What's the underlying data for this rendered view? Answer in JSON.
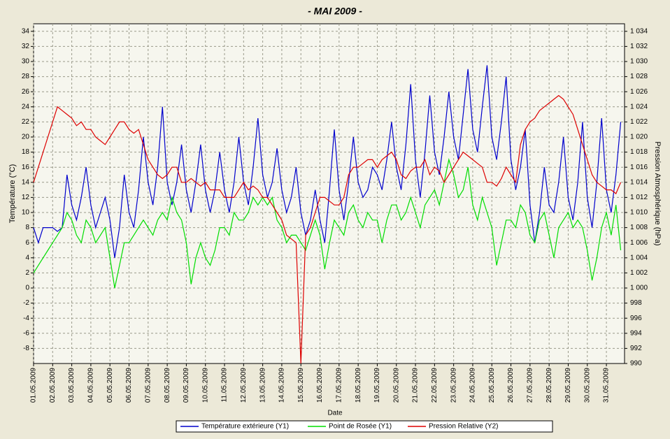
{
  "chart_data": {
    "type": "line",
    "title": "-  MAI  2009  -",
    "xlabel": "Date",
    "ylabel": "Température (°C)",
    "y2label": "Pression Atmosphérique (hPa)",
    "grid": true,
    "legend": "bottom",
    "xlim": [
      1,
      31.95
    ],
    "xticks": [
      {
        "value": 1,
        "label": "01.05.2009"
      },
      {
        "value": 2,
        "label": "02.05.2009"
      },
      {
        "value": 3,
        "label": "03.05.2009"
      },
      {
        "value": 4,
        "label": "04.05.2009"
      },
      {
        "value": 5,
        "label": "05.05.2009"
      },
      {
        "value": 6,
        "label": "06.05.2009"
      },
      {
        "value": 7,
        "label": "07.05.2009"
      },
      {
        "value": 8,
        "label": "08.05.2009"
      },
      {
        "value": 9,
        "label": "09.05.2009"
      },
      {
        "value": 10,
        "label": "10.05.2009"
      },
      {
        "value": 11,
        "label": "11.05.2009"
      },
      {
        "value": 12,
        "label": "12.05.2009"
      },
      {
        "value": 13,
        "label": "13.05.2009"
      },
      {
        "value": 14,
        "label": "14.05.2009"
      },
      {
        "value": 15,
        "label": "15.05.2009"
      },
      {
        "value": 16,
        "label": "16.05.2009"
      },
      {
        "value": 17,
        "label": "17.05.2009"
      },
      {
        "value": 18,
        "label": "18.05.2009"
      },
      {
        "value": 19,
        "label": "19.05.2009"
      },
      {
        "value": 20,
        "label": "20.05.2009"
      },
      {
        "value": 21,
        "label": "21.05.2009"
      },
      {
        "value": 22,
        "label": "22.05.2009"
      },
      {
        "value": 23,
        "label": "23.05.2009"
      },
      {
        "value": 24,
        "label": "24.05.2009"
      },
      {
        "value": 25,
        "label": "25.05.2009"
      },
      {
        "value": 26,
        "label": "26.05.2009"
      },
      {
        "value": 27,
        "label": "27.05.2009"
      },
      {
        "value": 28,
        "label": "28.05.2009"
      },
      {
        "value": 29,
        "label": "29.05.2009"
      },
      {
        "value": 30,
        "label": "30.05.2009"
      },
      {
        "value": 31,
        "label": "31.05.2009"
      }
    ],
    "ylim": [
      -10,
      35
    ],
    "yticks": [
      -8,
      -6,
      -4,
      -2,
      0,
      2,
      4,
      6,
      8,
      10,
      12,
      14,
      16,
      18,
      20,
      22,
      24,
      26,
      28,
      30,
      32,
      34
    ],
    "y2lim": [
      990,
      1035
    ],
    "y2ticks": [
      990,
      992,
      994,
      996,
      998,
      {
        "value": 1000,
        "label": "1 000"
      },
      {
        "value": 1002,
        "label": "1 002"
      },
      {
        "value": 1004,
        "label": "1 004"
      },
      {
        "value": 1006,
        "label": "1 006"
      },
      {
        "value": 1008,
        "label": "1 008"
      },
      {
        "value": 1010,
        "label": "1 010"
      },
      {
        "value": 1012,
        "label": "1 012"
      },
      {
        "value": 1014,
        "label": "1 014"
      },
      {
        "value": 1016,
        "label": "1 016"
      },
      {
        "value": 1018,
        "label": "1 018"
      },
      {
        "value": 1020,
        "label": "1 020"
      },
      {
        "value": 1022,
        "label": "1 022"
      },
      {
        "value": 1024,
        "label": "1 024"
      },
      {
        "value": 1026,
        "label": "1 026"
      },
      {
        "value": 1028,
        "label": "1 028"
      },
      {
        "value": 1030,
        "label": "1 030"
      },
      {
        "value": 1032,
        "label": "1 032"
      },
      {
        "value": 1034,
        "label": "1 034"
      }
    ],
    "x": [
      1,
      1.25,
      1.5,
      1.75,
      2,
      2.25,
      2.5,
      2.75,
      3,
      3.25,
      3.5,
      3.75,
      4,
      4.25,
      4.5,
      4.75,
      5,
      5.25,
      5.5,
      5.75,
      6,
      6.25,
      6.5,
      6.75,
      7,
      7.25,
      7.5,
      7.75,
      8,
      8.25,
      8.5,
      8.75,
      9,
      9.25,
      9.5,
      9.75,
      10,
      10.25,
      10.5,
      10.75,
      11,
      11.25,
      11.5,
      11.75,
      12,
      12.25,
      12.5,
      12.75,
      13,
      13.25,
      13.5,
      13.75,
      14,
      14.25,
      14.5,
      14.75,
      15,
      15.25,
      15.5,
      15.75,
      16,
      16.25,
      16.5,
      16.75,
      17,
      17.25,
      17.5,
      17.75,
      18,
      18.25,
      18.5,
      18.75,
      19,
      19.25,
      19.5,
      19.75,
      20,
      20.25,
      20.5,
      20.75,
      21,
      21.25,
      21.5,
      21.75,
      22,
      22.25,
      22.5,
      22.75,
      23,
      23.25,
      23.5,
      23.75,
      24,
      24.25,
      24.5,
      24.75,
      25,
      25.25,
      25.5,
      25.75,
      26,
      26.25,
      26.5,
      26.75,
      27,
      27.25,
      27.5,
      27.75,
      28,
      28.25,
      28.5,
      28.75,
      29,
      29.25,
      29.5,
      29.75,
      30,
      30.25,
      30.5,
      30.75,
      31,
      31.25,
      31.5,
      31.75
    ],
    "series": [
      {
        "name": "Température extérieure (Y1)",
        "color": "#0000cc",
        "values": [
          8,
          6,
          8,
          8,
          8,
          7.5,
          8,
          15,
          11,
          9,
          12,
          16,
          11,
          8,
          10,
          12,
          9,
          4,
          8,
          15,
          10,
          8,
          13,
          20,
          14,
          11,
          16,
          24,
          14,
          11,
          14,
          19,
          13,
          10,
          14,
          19,
          13,
          10,
          13,
          18,
          13,
          10,
          14,
          20,
          14,
          11,
          16,
          22.5,
          15,
          12,
          14,
          18.5,
          13,
          10,
          12,
          16,
          10,
          7,
          9,
          13,
          9,
          6,
          13,
          21,
          13,
          9,
          14,
          20,
          14,
          12,
          13,
          16,
          15,
          13,
          17,
          22,
          16,
          13,
          19,
          27,
          17,
          12,
          18,
          25.5,
          18,
          15,
          20,
          26,
          20,
          17,
          23,
          29,
          21,
          18,
          24,
          29.5,
          20,
          17,
          22,
          28,
          17,
          13,
          16,
          21,
          11,
          6,
          10,
          16,
          11,
          10,
          14,
          20,
          12,
          9,
          14,
          22,
          12,
          8,
          14,
          22.5,
          13,
          10,
          15,
          22
        ]
      },
      {
        "name": "Point de Rosée (Y1)",
        "color": "#00dd00",
        "values": [
          2,
          3,
          4,
          5,
          6,
          7,
          8,
          10,
          9,
          7,
          6,
          9,
          8,
          6,
          7,
          8,
          4,
          0,
          3,
          6,
          6,
          7,
          8,
          9,
          8,
          7,
          9,
          10,
          9,
          12,
          10,
          9,
          6,
          0.5,
          4,
          6,
          4,
          3,
          5,
          8,
          8,
          7,
          10,
          9,
          9,
          10,
          12,
          11,
          12,
          11,
          12,
          9,
          8,
          6,
          7,
          7,
          6,
          5,
          7,
          9,
          7,
          2.5,
          6,
          9,
          8,
          7,
          10,
          11,
          9,
          8,
          10,
          9,
          9,
          6,
          9,
          11,
          11,
          9,
          10,
          12,
          10,
          8,
          11,
          12,
          13,
          11,
          14,
          17,
          15,
          12,
          13,
          16,
          11,
          9,
          12,
          10,
          8,
          3,
          6,
          9,
          9,
          8,
          11,
          10,
          7,
          6,
          9,
          10,
          7,
          4,
          8,
          9,
          10,
          8,
          9,
          8,
          5,
          1,
          4,
          8,
          10,
          7,
          11,
          5
        ]
      },
      {
        "name": "Pression Relative (Y2)",
        "color": "#dd0000",
        "axis": "y2",
        "values": [
          1014,
          1016,
          1018,
          1020,
          1022,
          1024,
          1023.5,
          1023,
          1022.5,
          1021.5,
          1022,
          1021,
          1021,
          1020,
          1019.5,
          1019,
          1020,
          1021,
          1022,
          1022,
          1021,
          1020.5,
          1021,
          1019,
          1017,
          1016,
          1015,
          1014.5,
          1015,
          1016,
          1016,
          1014,
          1014,
          1014.5,
          1014,
          1013.5,
          1014,
          1013,
          1013,
          1013,
          1012,
          1012,
          1012,
          1013,
          1014,
          1013,
          1013.5,
          1013,
          1012,
          1012,
          1011,
          1010,
          1009,
          1007,
          1006.5,
          1006,
          990,
          1007,
          1008,
          1010,
          1012,
          1012,
          1011.5,
          1011,
          1011,
          1012,
          1015,
          1016,
          1016,
          1016.5,
          1017,
          1017,
          1016,
          1017,
          1017.5,
          1018,
          1017,
          1015,
          1014.5,
          1015.5,
          1016,
          1016,
          1017,
          1015,
          1016,
          1015.5,
          1014,
          1015,
          1016,
          1017,
          1018,
          1017.5,
          1017,
          1016.5,
          1016,
          1014,
          1014,
          1013.5,
          1014.5,
          1016,
          1015,
          1014,
          1019,
          1021,
          1022,
          1022.5,
          1023.5,
          1024,
          1024.5,
          1025,
          1025.5,
          1025,
          1024,
          1023,
          1021,
          1019,
          1017,
          1015,
          1014,
          1013.5,
          1013,
          1013,
          1012.5,
          1014
        ]
      }
    ]
  }
}
